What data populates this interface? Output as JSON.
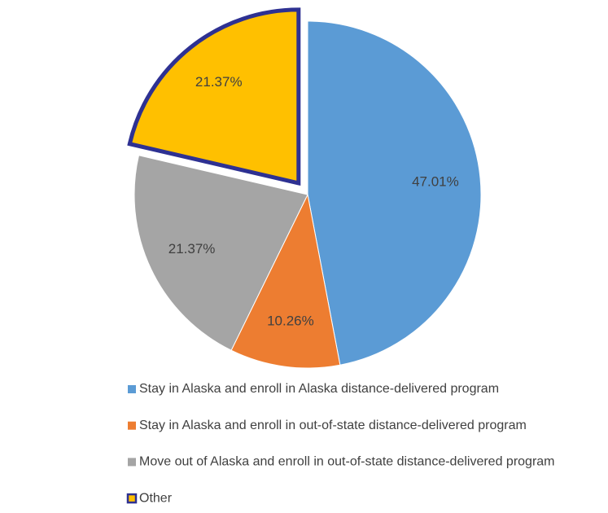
{
  "chart_data": {
    "type": "pie",
    "categories": [
      "Stay in Alaska and enroll in Alaska distance-delivered program",
      "Stay in Alaska and enroll in out-of-state distance-delivered program",
      "Move out of Alaska and enroll in out-of-state distance-delivered program",
      "Other"
    ],
    "values": [
      47.01,
      10.26,
      21.37,
      21.37
    ],
    "value_labels": [
      "47.01%",
      "10.26%",
      "21.37%",
      "21.37%"
    ],
    "colors": [
      "#5b9bd5",
      "#ed7d31",
      "#a5a5a5",
      "#ffc000"
    ],
    "explode": [
      0,
      0,
      0,
      1
    ],
    "edge_colors": [
      null,
      null,
      null,
      "#2e3192"
    ]
  }
}
